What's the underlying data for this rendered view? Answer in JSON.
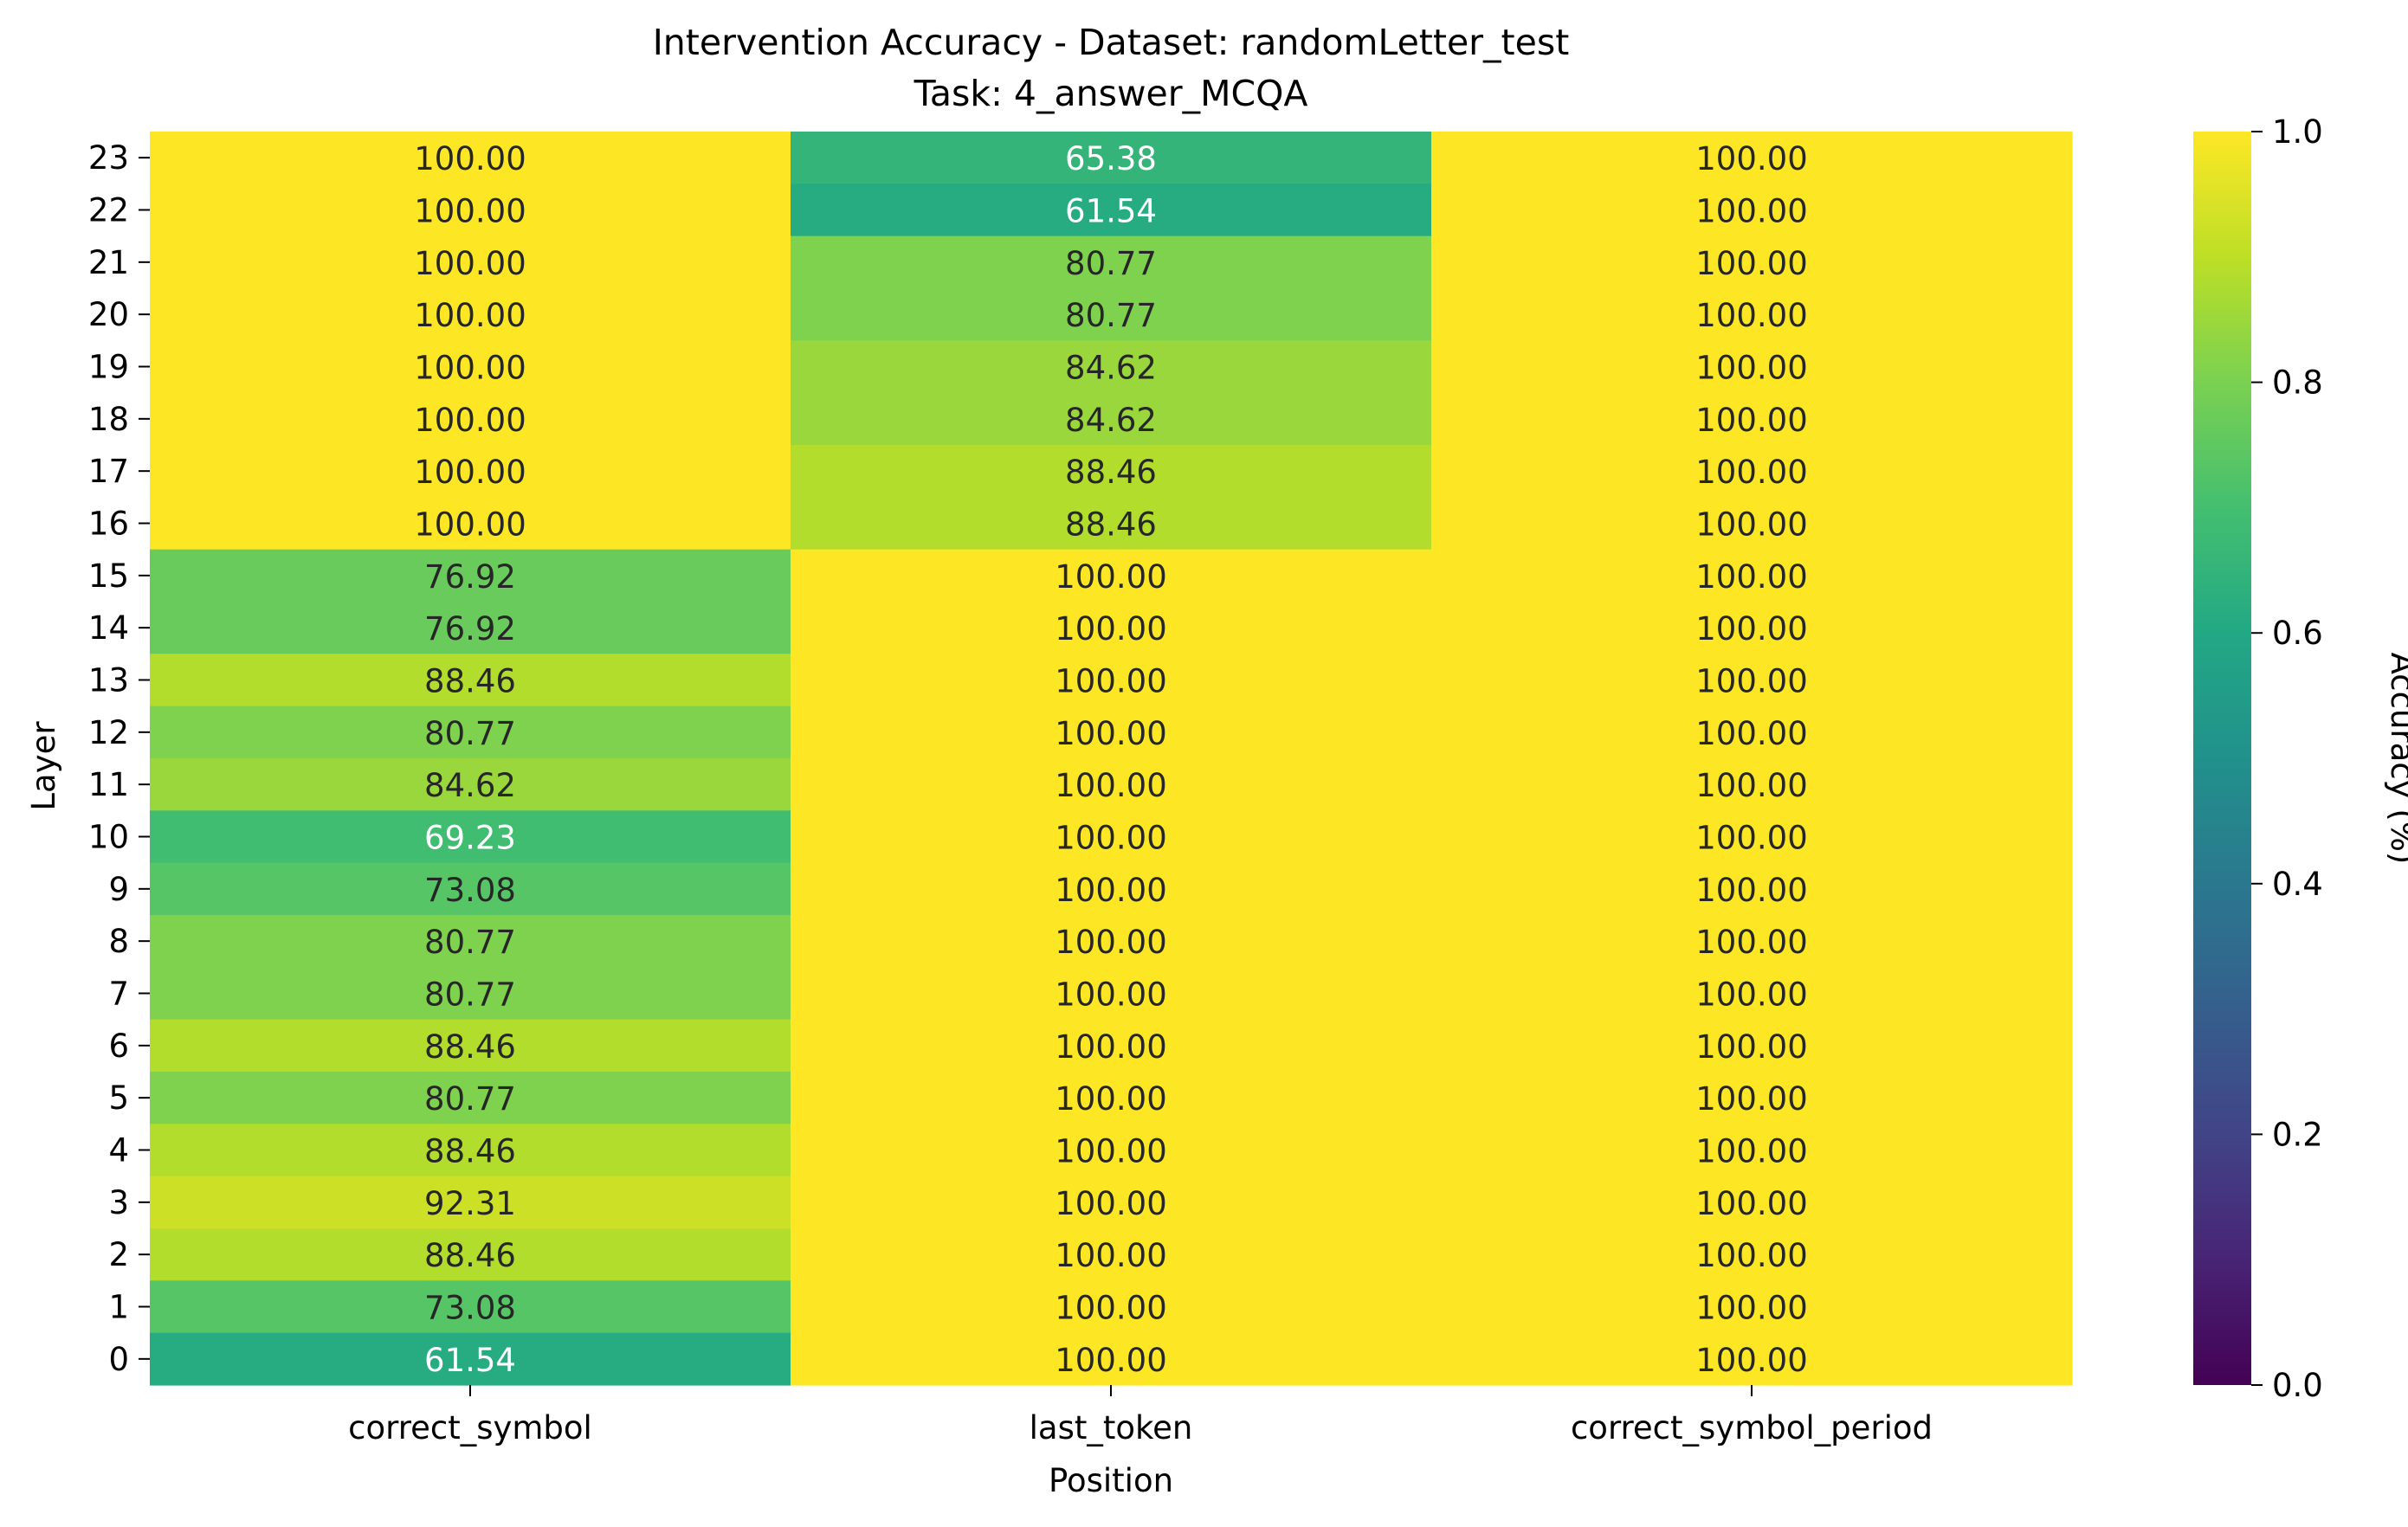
{
  "chart_data": {
    "type": "heatmap",
    "title": "Intervention Accuracy - Dataset: randomLetter_test",
    "subtitle": "Task: 4_answer_MCQA",
    "xlabel": "Position",
    "ylabel": "Layer",
    "x_categories": [
      "correct_symbol",
      "last_token",
      "correct_symbol_period"
    ],
    "y_categories": [
      "23",
      "22",
      "21",
      "20",
      "19",
      "18",
      "17",
      "16",
      "15",
      "14",
      "13",
      "12",
      "11",
      "10",
      "9",
      "8",
      "7",
      "6",
      "5",
      "4",
      "3",
      "2",
      "1",
      "0"
    ],
    "values": [
      [
        100.0,
        65.38,
        100.0
      ],
      [
        100.0,
        61.54,
        100.0
      ],
      [
        100.0,
        80.77,
        100.0
      ],
      [
        100.0,
        80.77,
        100.0
      ],
      [
        100.0,
        84.62,
        100.0
      ],
      [
        100.0,
        84.62,
        100.0
      ],
      [
        100.0,
        88.46,
        100.0
      ],
      [
        100.0,
        88.46,
        100.0
      ],
      [
        76.92,
        100.0,
        100.0
      ],
      [
        76.92,
        100.0,
        100.0
      ],
      [
        88.46,
        100.0,
        100.0
      ],
      [
        80.77,
        100.0,
        100.0
      ],
      [
        84.62,
        100.0,
        100.0
      ],
      [
        69.23,
        100.0,
        100.0
      ],
      [
        73.08,
        100.0,
        100.0
      ],
      [
        80.77,
        100.0,
        100.0
      ],
      [
        80.77,
        100.0,
        100.0
      ],
      [
        88.46,
        100.0,
        100.0
      ],
      [
        80.77,
        100.0,
        100.0
      ],
      [
        88.46,
        100.0,
        100.0
      ],
      [
        92.31,
        100.0,
        100.0
      ],
      [
        88.46,
        100.0,
        100.0
      ],
      [
        73.08,
        100.0,
        100.0
      ],
      [
        61.54,
        100.0,
        100.0
      ]
    ],
    "colorbar": {
      "label": "Accuracy (%)",
      "range": [
        0.0,
        1.0
      ],
      "ticks": [
        "0.0",
        "0.2",
        "0.4",
        "0.6",
        "0.8",
        "1.0"
      ],
      "colormap": "viridis"
    }
  }
}
